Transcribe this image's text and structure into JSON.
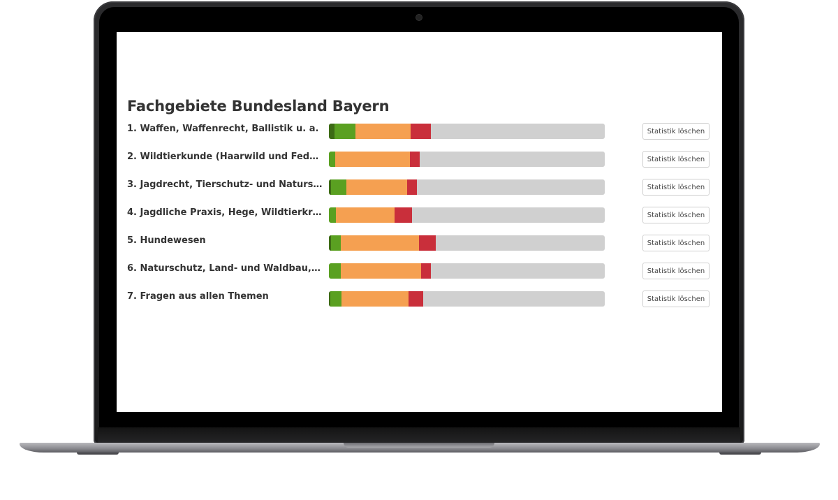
{
  "page": {
    "title": "Fachgebiete Bundesland Bayern"
  },
  "colors": {
    "perfect": "#3d6b15",
    "good": "#5aa021",
    "medium": "#f5a051",
    "bad": "#c92f3b",
    "unanswered": "#d0d0d0"
  },
  "topics": [
    {
      "label": "1. Waffen, Waffenrecht, Ballistik u. a.",
      "button": "Statistik löschen",
      "progress": {
        "perfect": 2,
        "good": 7.6,
        "medium": 20,
        "bad": 7.3
      }
    },
    {
      "label": "2. Wildtierkunde (Haarwild und Federwil...",
      "button": "Statistik löschen",
      "progress": {
        "perfect": 0,
        "good": 2.3,
        "medium": 27,
        "bad": 3.7
      }
    },
    {
      "label": "3. Jagdrecht, Tierschutz- und Naturschut...",
      "button": "Statistik löschen",
      "progress": {
        "perfect": 0.7,
        "good": 5.6,
        "medium": 22,
        "bad": 3.7
      }
    },
    {
      "label": "4. Jagdliche Praxis, Hege, Wildtierkrankh...",
      "button": "Statistik löschen",
      "progress": {
        "perfect": 0,
        "good": 2.5,
        "medium": 21.3,
        "bad": 6.4
      }
    },
    {
      "label": "5. Hundewesen",
      "button": "Statistik löschen",
      "progress": {
        "perfect": 0.7,
        "good": 3.5,
        "medium": 28.4,
        "bad": 6.1
      }
    },
    {
      "label": "6. Naturschutz, Land- und Waldbau, Wild...",
      "button": "Statistik löschen",
      "progress": {
        "perfect": 0,
        "good": 4.3,
        "medium": 29.1,
        "bad": 3.5
      }
    },
    {
      "label": "7. Fragen aus allen Themen",
      "button": "Statistik löschen",
      "progress": {
        "perfect": 0.5,
        "good": 4.1,
        "medium": 24.3,
        "bad": 5.3
      }
    }
  ]
}
